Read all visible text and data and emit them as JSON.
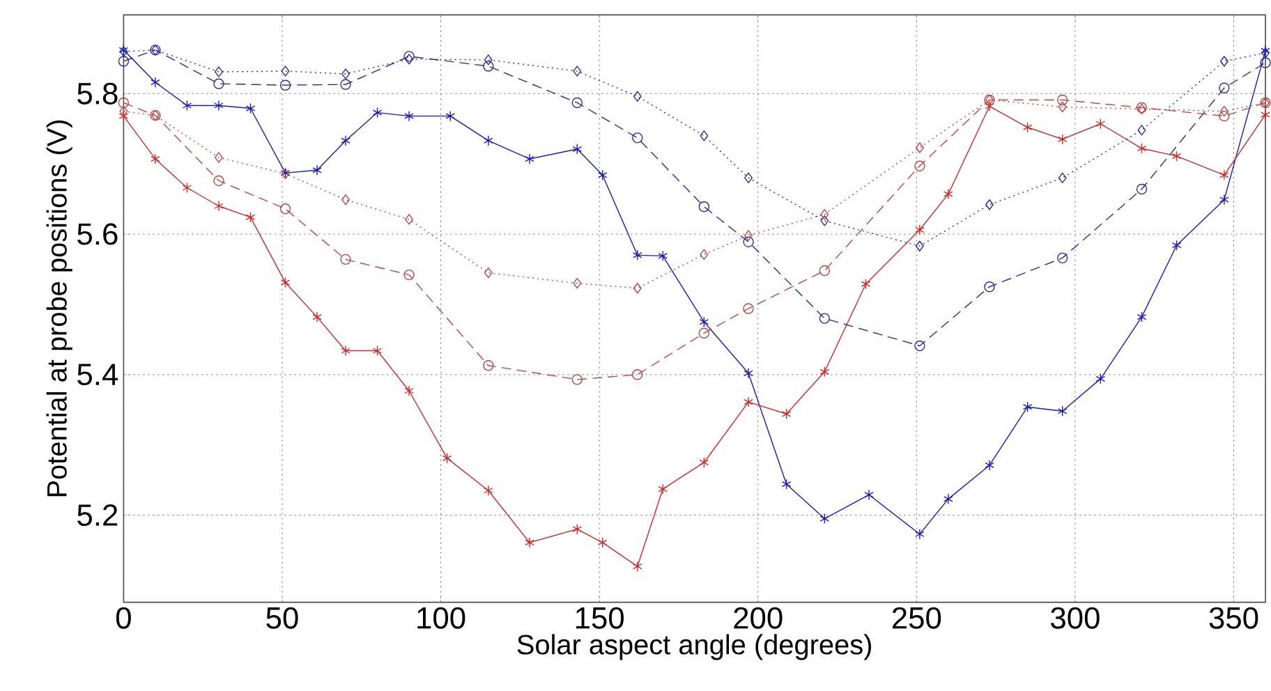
{
  "chart_data": {
    "type": "line",
    "xlabel": "Solar aspect angle (degrees)",
    "ylabel": "Potential at probe positions (V)",
    "xlim": [
      0,
      360
    ],
    "ylim": [
      5.076,
      5.912
    ],
    "xticks": [
      0,
      50,
      100,
      150,
      200,
      250,
      300,
      350
    ],
    "yticks": [
      5.2,
      5.4,
      5.6,
      5.8
    ],
    "grid": true,
    "series": [
      {
        "color": "#1a1ab4",
        "line_style": "solid",
        "marker": "cross",
        "x": [
          0,
          10,
          20,
          30,
          40,
          51,
          61,
          70,
          80,
          90,
          103,
          115,
          128,
          143,
          151,
          162,
          170,
          183,
          197,
          209,
          221,
          235,
          251,
          260,
          273,
          285,
          296,
          308,
          321,
          332,
          347,
          360
        ],
        "values": [
          5.862,
          5.816,
          5.783,
          5.783,
          5.779,
          5.687,
          5.691,
          5.733,
          5.773,
          5.768,
          5.768,
          5.733,
          5.707,
          5.721,
          5.684,
          5.57,
          5.569,
          5.475,
          5.402,
          5.244,
          5.195,
          5.229,
          5.173,
          5.223,
          5.271,
          5.354,
          5.348,
          5.394,
          5.482,
          5.584,
          5.649,
          5.861
        ]
      },
      {
        "color": "#cc2a2a",
        "line_style": "solid",
        "marker": "cross",
        "x": [
          0,
          10,
          20,
          30,
          40,
          51,
          61,
          70,
          80,
          90,
          102,
          115,
          128,
          143,
          151,
          162,
          170,
          183,
          197,
          209,
          221,
          234,
          251,
          260,
          273,
          285,
          296,
          308,
          321,
          332,
          347,
          360
        ],
        "values": [
          5.768,
          5.707,
          5.666,
          5.64,
          5.624,
          5.531,
          5.482,
          5.434,
          5.434,
          5.377,
          5.281,
          5.235,
          5.161,
          5.18,
          5.161,
          5.127,
          5.237,
          5.275,
          5.361,
          5.344,
          5.404,
          5.529,
          5.606,
          5.657,
          5.782,
          5.752,
          5.735,
          5.757,
          5.722,
          5.711,
          5.684,
          5.77
        ]
      },
      {
        "color": "#2a2a9a",
        "line_style": "dashed",
        "marker": "circle",
        "x": [
          0,
          10,
          30,
          51,
          70,
          90,
          115,
          143,
          162,
          183,
          197,
          221,
          251,
          273,
          296,
          321,
          347,
          360
        ],
        "values": [
          5.846,
          5.862,
          5.814,
          5.812,
          5.813,
          5.853,
          5.839,
          5.787,
          5.737,
          5.639,
          5.589,
          5.48,
          5.441,
          5.525,
          5.566,
          5.664,
          5.808,
          5.844
        ]
      },
      {
        "color": "#2a2a9a",
        "line_style": "dotted",
        "marker": "diamond",
        "x": [
          0,
          10,
          30,
          51,
          70,
          90,
          115,
          143,
          162,
          183,
          197,
          221,
          251,
          273,
          296,
          321,
          347,
          360
        ],
        "values": [
          5.86,
          5.862,
          5.831,
          5.832,
          5.828,
          5.849,
          5.848,
          5.832,
          5.796,
          5.74,
          5.68,
          5.619,
          5.583,
          5.642,
          5.68,
          5.748,
          5.846,
          5.858
        ]
      },
      {
        "color": "#bb4444",
        "line_style": "dashed",
        "marker": "circle",
        "x": [
          0,
          10,
          30,
          51,
          70,
          90,
          115,
          143,
          162,
          183,
          197,
          221,
          251,
          273,
          296,
          321,
          347,
          360
        ],
        "values": [
          5.787,
          5.769,
          5.676,
          5.636,
          5.564,
          5.542,
          5.413,
          5.393,
          5.4,
          5.459,
          5.494,
          5.548,
          5.697,
          5.791,
          5.791,
          5.78,
          5.768,
          5.787
        ]
      },
      {
        "color": "#bb4444",
        "line_style": "dotted",
        "marker": "diamond",
        "x": [
          0,
          10,
          30,
          51,
          70,
          90,
          115,
          143,
          162,
          183,
          197,
          221,
          251,
          273,
          296,
          321,
          347,
          360
        ],
        "values": [
          5.775,
          5.769,
          5.709,
          5.686,
          5.649,
          5.621,
          5.545,
          5.53,
          5.523,
          5.571,
          5.598,
          5.628,
          5.723,
          5.791,
          5.781,
          5.778,
          5.775,
          5.787
        ]
      }
    ]
  }
}
